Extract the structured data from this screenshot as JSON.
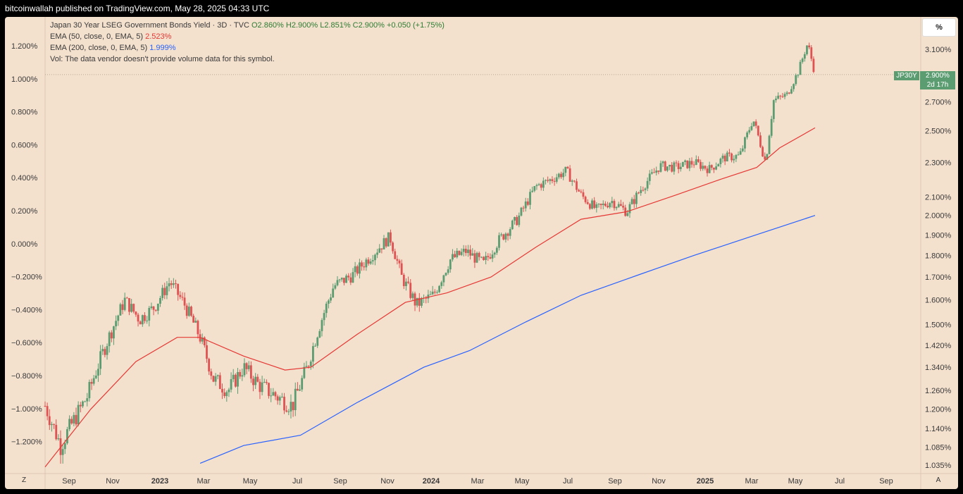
{
  "header": {
    "published": "bitcoinwallah published on TradingView.com, May 28, 2025 04:33 UTC"
  },
  "legend": {
    "title": "Japan 30 Year LSEG Government Bonds Yield · 3D · TVC",
    "ohlc": "O2.860% H2.900% L2.851% C2.900% +0.050 (+1.75%)",
    "ema50_label": "EMA (50, close, 0, EMA, 5)",
    "ema50_value": "2.523%",
    "ema200_label": "EMA (200, close, 0, EMA, 5)",
    "ema200_value": "1.999%",
    "vol": "Vol: The data vendor doesn't provide volume data for this symbol."
  },
  "scale_mode_button": "%",
  "symbol_tag": "JP30Y",
  "price_tag": {
    "price": "2.900%",
    "countdown": "2d 17h"
  },
  "bottom_buttons": {
    "left": "Z",
    "right": "A"
  },
  "colors": {
    "up": "#5b9c71",
    "down": "#e05252",
    "ema50": "#e53935",
    "ema200": "#2962ff",
    "bg": "#f3e0cd"
  },
  "chart_data": {
    "type": "candlestick",
    "symbol": "JP30Y",
    "interval": "3D",
    "left_axis_ticks": [
      "1.200%",
      "1.000%",
      "0.800%",
      "0.600%",
      "0.400%",
      "0.200%",
      "0.000%",
      "−0.200%",
      "−0.400%",
      "−0.600%",
      "−0.800%",
      "−1.000%",
      "−1.200%"
    ],
    "right_axis_ticks": [
      "3.100%",
      "2.700%",
      "2.500%",
      "2.300%",
      "2.100%",
      "2.000%",
      "1.900%",
      "1.800%",
      "1.700%",
      "1.600%",
      "1.500%",
      "1.420%",
      "1.340%",
      "1.260%",
      "1.200%",
      "1.140%",
      "1.085%",
      "1.035%"
    ],
    "x_ticks": [
      "Sep",
      "Nov",
      "2023",
      "Mar",
      "May",
      "Jul",
      "Sep",
      "Nov",
      "2024",
      "Mar",
      "May",
      "Jul",
      "Sep",
      "Nov",
      "2025",
      "Mar",
      "May",
      "Jul",
      "Sep"
    ],
    "close_path": [
      [
        "2022-07-20",
        1.21
      ],
      [
        "2022-08-10",
        1.09
      ],
      [
        "2022-09-15",
        1.24
      ],
      [
        "2022-10-10",
        1.42
      ],
      [
        "2022-11-05",
        1.6
      ],
      [
        "2022-11-25",
        1.52
      ],
      [
        "2022-12-15",
        1.57
      ],
      [
        "2023-01-05",
        1.68
      ],
      [
        "2023-01-25",
        1.58
      ],
      [
        "2023-02-15",
        1.45
      ],
      [
        "2023-03-05",
        1.3
      ],
      [
        "2023-03-25",
        1.26
      ],
      [
        "2023-04-15",
        1.34
      ],
      [
        "2023-05-05",
        1.28
      ],
      [
        "2023-05-30",
        1.24
      ],
      [
        "2023-06-20",
        1.21
      ],
      [
        "2023-07-10",
        1.34
      ],
      [
        "2023-07-25",
        1.48
      ],
      [
        "2023-08-15",
        1.66
      ],
      [
        "2023-09-10",
        1.71
      ],
      [
        "2023-10-05",
        1.8
      ],
      [
        "2023-10-30",
        1.89
      ],
      [
        "2023-11-15",
        1.7
      ],
      [
        "2023-12-05",
        1.58
      ],
      [
        "2023-12-28",
        1.62
      ],
      [
        "2024-01-20",
        1.78
      ],
      [
        "2024-02-10",
        1.82
      ],
      [
        "2024-03-05",
        1.76
      ],
      [
        "2024-03-25",
        1.87
      ],
      [
        "2024-04-20",
        1.98
      ],
      [
        "2024-05-15",
        2.16
      ],
      [
        "2024-06-05",
        2.2
      ],
      [
        "2024-06-25",
        2.25
      ],
      [
        "2024-07-15",
        2.11
      ],
      [
        "2024-08-05",
        2.03
      ],
      [
        "2024-08-25",
        2.08
      ],
      [
        "2024-09-15",
        2.02
      ],
      [
        "2024-10-05",
        2.15
      ],
      [
        "2024-10-30",
        2.28
      ],
      [
        "2024-11-20",
        2.27
      ],
      [
        "2024-12-15",
        2.3
      ],
      [
        "2025-01-05",
        2.26
      ],
      [
        "2025-01-25",
        2.33
      ],
      [
        "2025-02-15",
        2.34
      ],
      [
        "2025-03-05",
        2.58
      ],
      [
        "2025-03-22",
        2.3
      ],
      [
        "2025-04-02",
        2.71
      ],
      [
        "2025-04-20",
        2.75
      ],
      [
        "2025-05-05",
        2.92
      ],
      [
        "2025-05-18",
        3.15
      ],
      [
        "2025-05-28",
        2.9
      ]
    ],
    "ema50_path": [
      [
        "2022-07-20",
        1.03
      ],
      [
        "2022-09-20",
        1.2
      ],
      [
        "2022-11-20",
        1.36
      ],
      [
        "2023-01-15",
        1.45
      ],
      [
        "2023-02-15",
        1.45
      ],
      [
        "2023-04-15",
        1.38
      ],
      [
        "2023-06-10",
        1.33
      ],
      [
        "2023-07-15",
        1.34
      ],
      [
        "2023-09-15",
        1.46
      ],
      [
        "2023-11-20",
        1.59
      ],
      [
        "2024-01-15",
        1.63
      ],
      [
        "2024-03-15",
        1.7
      ],
      [
        "2024-05-15",
        1.84
      ],
      [
        "2024-07-15",
        1.98
      ],
      [
        "2024-09-15",
        2.02
      ],
      [
        "2024-11-20",
        2.11
      ],
      [
        "2025-01-20",
        2.2
      ],
      [
        "2025-03-10",
        2.27
      ],
      [
        "2025-04-10",
        2.39
      ],
      [
        "2025-05-28",
        2.52
      ]
    ],
    "ema200_path": [
      [
        "2023-02-15",
        1.04
      ],
      [
        "2023-04-15",
        1.09
      ],
      [
        "2023-07-01",
        1.12
      ],
      [
        "2023-09-15",
        1.22
      ],
      [
        "2023-12-15",
        1.34
      ],
      [
        "2024-02-15",
        1.4
      ],
      [
        "2024-05-01",
        1.51
      ],
      [
        "2024-07-15",
        1.62
      ],
      [
        "2024-10-01",
        1.71
      ],
      [
        "2024-12-15",
        1.8
      ],
      [
        "2025-03-01",
        1.89
      ],
      [
        "2025-05-28",
        2.0
      ]
    ],
    "last_close": 2.9
  }
}
